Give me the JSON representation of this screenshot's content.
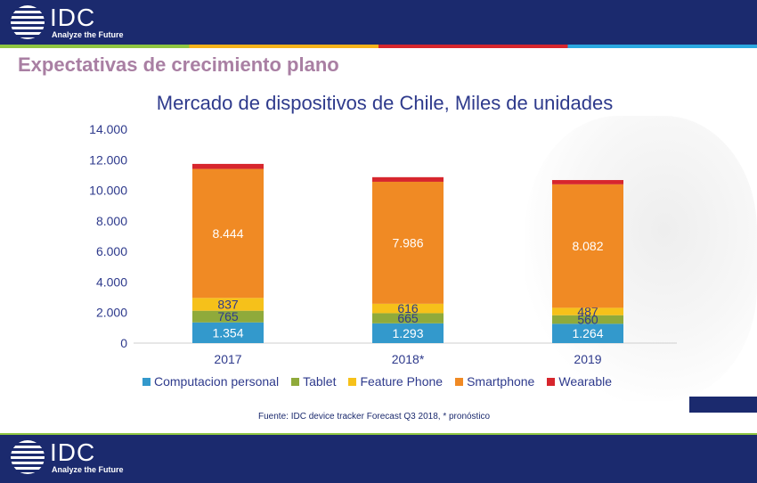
{
  "brand": {
    "name": "IDC",
    "tagline": "Analyze the Future"
  },
  "slide_title": "Expectativas de crecimiento plano",
  "source_note": "Fuente: IDC device tracker Forecast Q3 2018, * pronóstico",
  "colors": {
    "navy": "#1b2a6e",
    "Computacion personal": "#3399cc",
    "Tablet": "#8faa3b",
    "Feature Phone": "#f6c11a",
    "Smartphone": "#f08a24",
    "Wearable": "#d7262d"
  },
  "chart_data": {
    "type": "bar",
    "stacked": true,
    "title": "Mercado de dispositivos de Chile, Miles de unidades",
    "categories": [
      "2017",
      "2018*",
      "2019"
    ],
    "series": [
      {
        "name": "Computacion personal",
        "values": [
          1354,
          1293,
          1264
        ],
        "labels": [
          "1.354",
          "1.293",
          "1.264"
        ],
        "label_color": "#ffffff"
      },
      {
        "name": "Tablet",
        "values": [
          765,
          665,
          560
        ],
        "labels": [
          "765",
          "665",
          "560"
        ],
        "label_color": "#2e3a8c"
      },
      {
        "name": "Feature Phone",
        "values": [
          837,
          616,
          487
        ],
        "labels": [
          "837",
          "616",
          "487"
        ],
        "label_color": "#2e3a8c"
      },
      {
        "name": "Smartphone",
        "values": [
          8444,
          7986,
          8082
        ],
        "labels": [
          "8.444",
          "7.986",
          "8.082"
        ],
        "label_color": "#ffffff"
      },
      {
        "name": "Wearable",
        "values": [
          330,
          300,
          280
        ],
        "labels": [
          "",
          "",
          ""
        ],
        "label_color": "#ffffff"
      }
    ],
    "y_ticks": [
      "0",
      "2.000",
      "4.000",
      "6.000",
      "8.000",
      "10.000",
      "12.000",
      "14.000"
    ],
    "ylim": [
      0,
      14000
    ],
    "grid": false,
    "legend_position": "bottom"
  }
}
